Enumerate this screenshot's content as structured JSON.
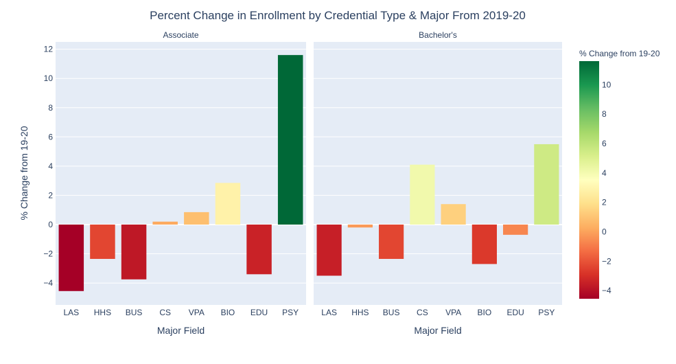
{
  "chart_data": {
    "type": "bar",
    "title": "Percent Change in Enrollment by Credential Type & Major From 2019-20",
    "xlabel": "Major Field",
    "ylabel": "% Change from 19-20",
    "ylim": [
      -5.5,
      12.5
    ],
    "yticks": [
      -4,
      -2,
      0,
      2,
      4,
      6,
      8,
      10,
      12
    ],
    "categories": [
      "LAS",
      "HHS",
      "BUS",
      "CS",
      "VPA",
      "BIO",
      "EDU",
      "PSY"
    ],
    "panels": [
      {
        "name": "Associate",
        "values": [
          -4.55,
          -2.35,
          -3.75,
          0.2,
          0.85,
          2.85,
          -3.4,
          11.6
        ]
      },
      {
        "name": "Bachelor's",
        "values": [
          -3.5,
          -0.2,
          -2.35,
          4.1,
          1.4,
          -2.7,
          -0.7,
          5.5
        ]
      }
    ],
    "colorbar": {
      "title": "% Change from 19-20",
      "range": [
        -4.55,
        11.6
      ],
      "ticks": [
        -4,
        -2,
        0,
        2,
        4,
        6,
        8,
        10
      ],
      "colorscale": [
        "#a50026",
        "#d73027",
        "#f46d43",
        "#fdae61",
        "#fee08b",
        "#ffffbf",
        "#d9ef8b",
        "#a6d96a",
        "#66bd63",
        "#1a9850",
        "#006837"
      ]
    }
  }
}
